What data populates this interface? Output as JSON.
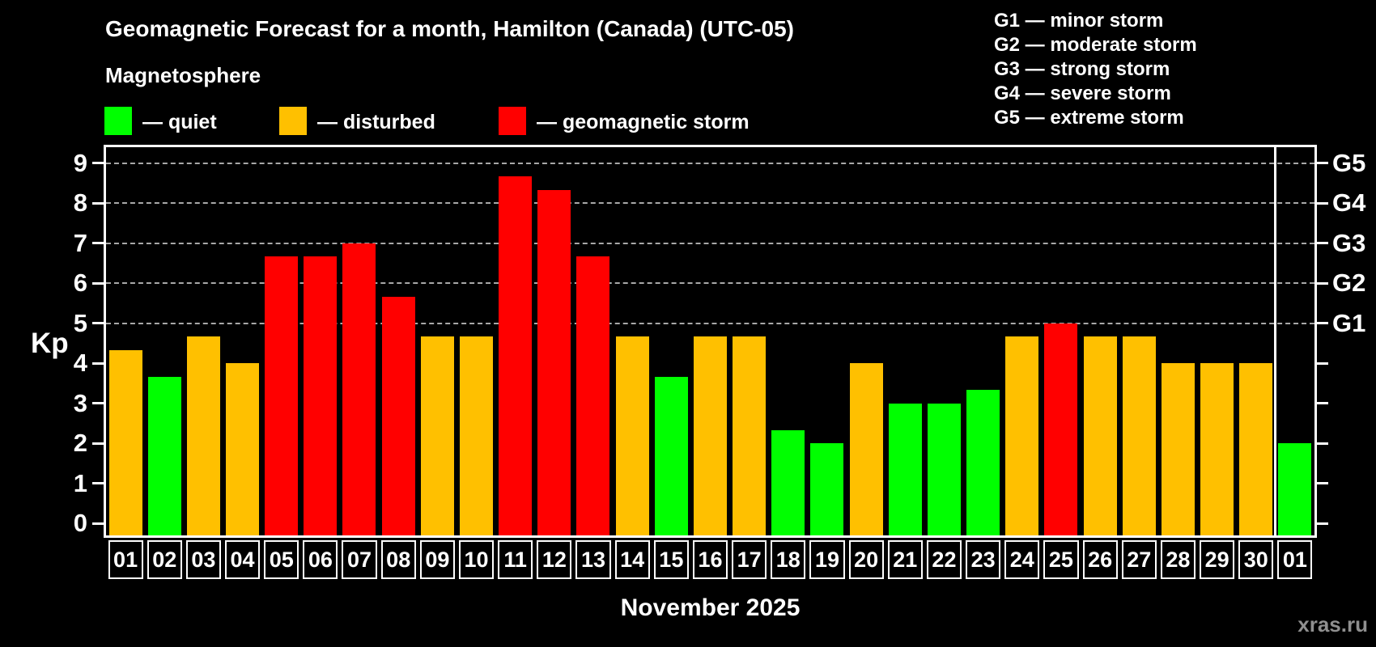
{
  "header": {
    "title": "Geomagnetic Forecast for a month, Hamilton (Canada) (UTC-05)",
    "subtitle": "Magnetosphere"
  },
  "legend": {
    "items": [
      {
        "status": "quiet",
        "label": "— quiet"
      },
      {
        "status": "disturbed",
        "label": "— disturbed"
      },
      {
        "status": "storm",
        "label": "— geomagnetic storm"
      }
    ]
  },
  "g_scale_legend": {
    "lines": [
      "G1 — minor storm",
      "G2 — moderate storm",
      "G3 — strong storm",
      "G4 — severe storm",
      "G5 — extreme storm"
    ]
  },
  "colors": {
    "quiet": "#00ff00",
    "disturbed": "#ffc000",
    "storm": "#ff0000",
    "background": "#000000",
    "axis": "#ffffff",
    "gridline": "#a8a8a8",
    "watermark": "#8f8f8f"
  },
  "axis": {
    "kp_label": "Kp",
    "month_label": "November 2025",
    "y_ticks": [
      0,
      1,
      2,
      3,
      4,
      5,
      6,
      7,
      8,
      9
    ],
    "right_axis_labels": [
      {
        "kp": 5,
        "label": "G1"
      },
      {
        "kp": 6,
        "label": "G2"
      },
      {
        "kp": 7,
        "label": "G3"
      },
      {
        "kp": 8,
        "label": "G4"
      },
      {
        "kp": 9,
        "label": "G5"
      }
    ]
  },
  "chart_data": {
    "type": "bar",
    "title": "Geomagnetic Forecast for a month, Hamilton (Canada) (UTC-05)",
    "xlabel": "November 2025",
    "ylabel": "Kp",
    "ylim": [
      0,
      9
    ],
    "grid": "horizontal dashed lines at Kp 5,6,7,8,9 (storm thresholds G1–G5)",
    "legend_position": "top",
    "categories": [
      "01",
      "02",
      "03",
      "04",
      "05",
      "06",
      "07",
      "08",
      "09",
      "10",
      "11",
      "12",
      "13",
      "14",
      "15",
      "16",
      "17",
      "18",
      "19",
      "20",
      "21",
      "22",
      "23",
      "24",
      "25",
      "26",
      "27",
      "28",
      "29",
      "30",
      "01"
    ],
    "values": [
      4.33,
      3.67,
      4.67,
      4.0,
      6.67,
      6.67,
      7.0,
      5.67,
      4.67,
      4.67,
      8.67,
      8.33,
      6.67,
      4.67,
      3.67,
      4.67,
      4.67,
      2.33,
      2.0,
      4.0,
      3.0,
      3.0,
      3.33,
      4.67,
      5.0,
      4.67,
      4.67,
      4.0,
      4.0,
      4.0,
      2.0
    ],
    "statuses": [
      "disturbed",
      "quiet",
      "disturbed",
      "disturbed",
      "storm",
      "storm",
      "storm",
      "storm",
      "disturbed",
      "disturbed",
      "storm",
      "storm",
      "storm",
      "disturbed",
      "quiet",
      "disturbed",
      "disturbed",
      "quiet",
      "quiet",
      "disturbed",
      "quiet",
      "quiet",
      "quiet",
      "disturbed",
      "storm",
      "disturbed",
      "disturbed",
      "disturbed",
      "disturbed",
      "disturbed",
      "quiet"
    ],
    "month_separator_after_index": 29
  },
  "watermark": "xras.ru"
}
